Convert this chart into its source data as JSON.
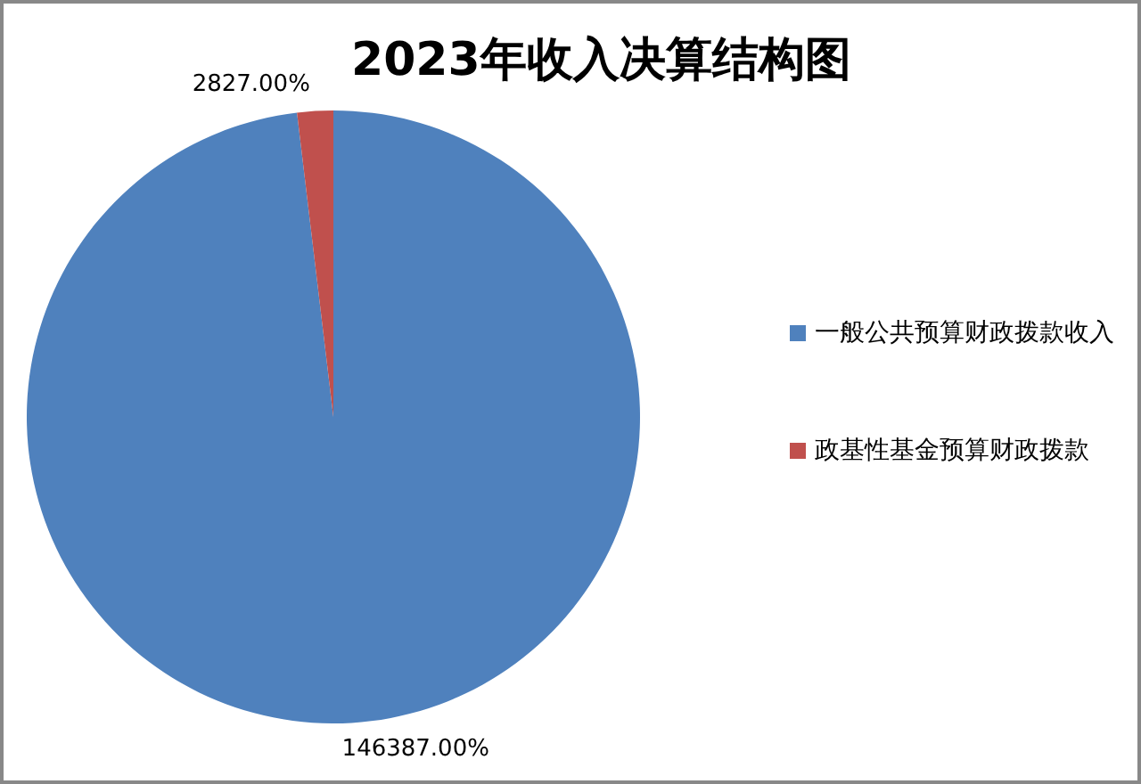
{
  "chart_data": {
    "type": "pie",
    "title": "2023年收入决算结构图",
    "categories": [
      "一般公共预算财政拨款收入",
      "政基性基金预算财政拨款"
    ],
    "values": [
      146387,
      2827
    ],
    "colors": [
      "#4f81bd",
      "#c0504d"
    ],
    "value_labels": [
      "146387.00%",
      "2827.00%"
    ],
    "legend": "right"
  }
}
